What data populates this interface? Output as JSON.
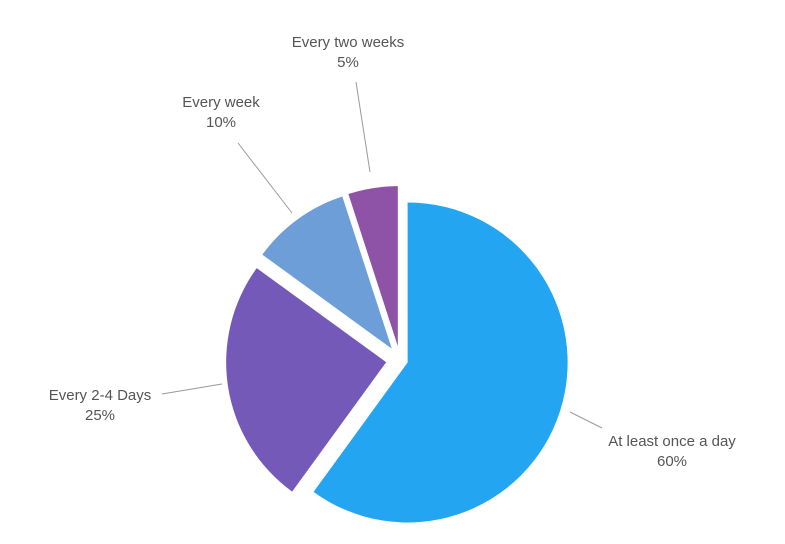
{
  "chart_data": {
    "type": "pie",
    "slices": [
      {
        "label": "At least once a day",
        "value": 60,
        "value_label": "60%",
        "color": "#24A5F1"
      },
      {
        "label": "Every 2-4 Days",
        "value": 25,
        "value_label": "25%",
        "color": "#7459B9"
      },
      {
        "label": "Every week",
        "value": 10,
        "value_label": "10%",
        "color": "#6E9ED8"
      },
      {
        "label": "Every two weeks",
        "value": 5,
        "value_label": "5%",
        "color": "#8E52A6"
      }
    ],
    "exploded": true,
    "start": "top",
    "direction": "clockwise"
  }
}
